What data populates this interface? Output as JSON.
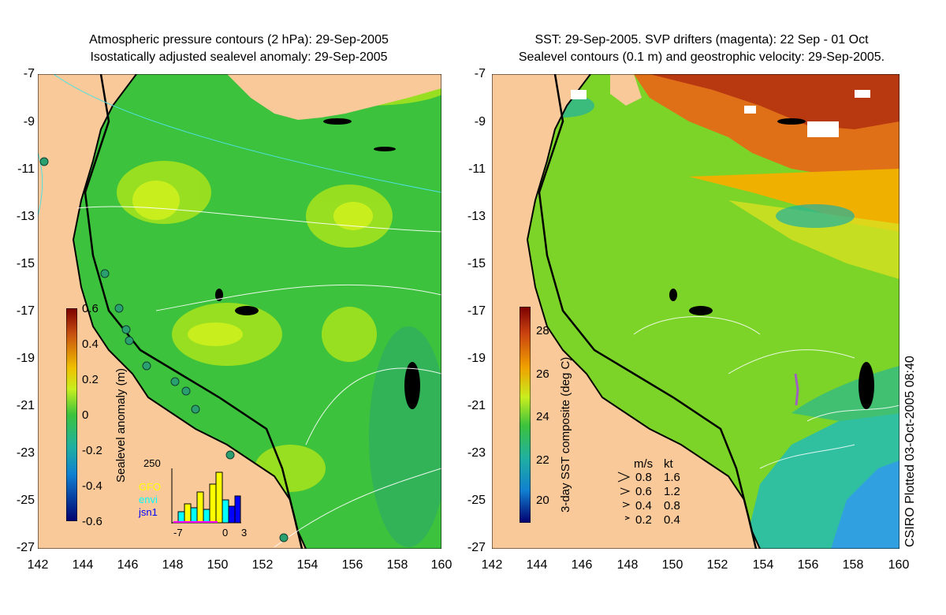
{
  "left_panel": {
    "title_line1": "Atmospheric pressure contours (2 hPa): 29-Sep-2005",
    "title_line2": "Isostatically adjusted sealevel anomaly: 29-Sep-2005",
    "colorbar_label": "Sealevel anomaly (m)",
    "colorbar_ticks": [
      "0.6",
      "0.4",
      "0.2",
      "0",
      "-0.2",
      "-0.4",
      "-0.6"
    ],
    "inset": {
      "ymax_label": "250",
      "x_ticks": [
        "-7",
        "0",
        "3"
      ],
      "legend": [
        {
          "name": "GFO",
          "color": "#ffff00"
        },
        {
          "name": "envi",
          "color": "#00ffff"
        },
        {
          "name": "jsn1",
          "color": "#0000ff"
        }
      ]
    }
  },
  "right_panel": {
    "title_line1": "SST: 29-Sep-2005. SVP drifters (magenta): 22 Sep - 01 Oct",
    "title_line2": "Sealevel contours (0.1 m) and geostrophic velocity: 29-Sep-2005.",
    "colorbar_label": "3-day SST composite (deg C)",
    "colorbar_ticks": [
      "28",
      "26",
      "24",
      "22",
      "20"
    ],
    "velocity_key": {
      "header_ms": "m/s",
      "header_kt": "kt",
      "rows": [
        {
          "ms": "0.8",
          "kt": "1.6"
        },
        {
          "ms": "0.6",
          "kt": "1.2"
        },
        {
          "ms": "0.4",
          "kt": "0.8"
        },
        {
          "ms": "0.2",
          "kt": "0.4"
        }
      ]
    },
    "plot_credit": "CSIRO Plotted 03-Oct-2005 08:40"
  },
  "axes": {
    "lat_ticks": [
      "-7",
      "-9",
      "-11",
      "-13",
      "-15",
      "-17",
      "-19",
      "-21",
      "-23",
      "-25",
      "-27"
    ],
    "lon_ticks": [
      "142",
      "144",
      "146",
      "148",
      "150",
      "152",
      "154",
      "156",
      "158",
      "160"
    ]
  },
  "colors": {
    "land": "#f9c99a",
    "ocean_green": "#3cc23c",
    "anomaly_yellow": "#c8ee1e",
    "coast": "#000000"
  }
}
